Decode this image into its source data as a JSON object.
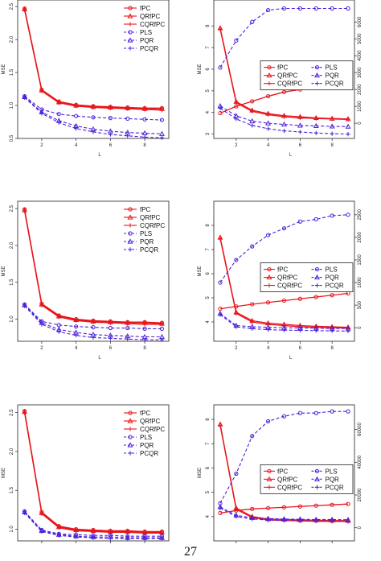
{
  "page_number": "27",
  "colors": {
    "red": "#e8151b",
    "blue": "#4b1fdc"
  },
  "legend_labels": {
    "fpc": "fPC",
    "qrfpc": "QRfPC",
    "cqrfpc": "CQRfPC",
    "pls": "PLS",
    "pqr": "PQR",
    "pcqr": "PCQR"
  },
  "chart_data": [
    {
      "type": "line",
      "xlabel": "L",
      "ylabel": "MSE",
      "ylim": [
        0.5,
        2.6
      ],
      "x": [
        1,
        2,
        3,
        4,
        5,
        6,
        7,
        8,
        9
      ],
      "xticks": [
        2,
        4,
        6,
        8
      ],
      "yticks": [
        0.5,
        1.0,
        1.5,
        2.0,
        2.5
      ],
      "ytick_labels": [
        "0.5",
        "1.0",
        "1.5",
        "2.0",
        "2.5"
      ],
      "legend": "top-right",
      "series": [
        {
          "name": "fPC",
          "color": "red",
          "dash": "solid",
          "marker": "circle",
          "values": [
            2.47,
            1.24,
            1.06,
            1.01,
            0.99,
            0.98,
            0.97,
            0.96,
            0.96
          ]
        },
        {
          "name": "QRfPC",
          "color": "red",
          "dash": "solid",
          "marker": "triangle",
          "values": [
            2.46,
            1.23,
            1.05,
            1.0,
            0.98,
            0.97,
            0.96,
            0.95,
            0.95
          ]
        },
        {
          "name": "CQRfPC",
          "color": "red",
          "dash": "solid",
          "marker": "plus",
          "values": [
            2.45,
            1.22,
            1.04,
            0.99,
            0.97,
            0.96,
            0.95,
            0.94,
            0.93
          ]
        },
        {
          "name": "PLS",
          "color": "blue",
          "dash": "dashed",
          "marker": "circle",
          "values": [
            1.14,
            0.94,
            0.87,
            0.84,
            0.82,
            0.81,
            0.8,
            0.79,
            0.78
          ]
        },
        {
          "name": "PQR",
          "color": "blue",
          "dash": "dashed",
          "marker": "triangle",
          "values": [
            1.13,
            0.9,
            0.77,
            0.69,
            0.64,
            0.61,
            0.59,
            0.58,
            0.57
          ]
        },
        {
          "name": "PCQR",
          "color": "blue",
          "dash": "dashed",
          "marker": "plus",
          "values": [
            1.12,
            0.88,
            0.74,
            0.65,
            0.6,
            0.56,
            0.54,
            0.52,
            0.51
          ]
        }
      ]
    },
    {
      "type": "line",
      "xlabel": "L",
      "ylabel": "MSE",
      "x": [
        1,
        2,
        3,
        4,
        5,
        6,
        7,
        8,
        9
      ],
      "xticks": [
        2,
        4,
        6,
        8
      ],
      "ylim": [
        2.8,
        9.2
      ],
      "yticks": [
        3,
        4,
        5,
        6,
        7,
        8
      ],
      "ytick_labels": [
        "3",
        "4",
        "5",
        "6",
        "7",
        "8"
      ],
      "y2lim": [
        -900,
        7300
      ],
      "y2ticks": [
        0,
        1000,
        2000,
        3000,
        4000,
        5000,
        6000
      ],
      "y2tick_labels": [
        "0",
        "1000",
        "2000",
        "3000",
        "4000",
        "5000",
        "6000"
      ],
      "legend": "center-right",
      "series": [
        {
          "name": "fPC",
          "color": "red",
          "dash": "solid",
          "marker": "circle",
          "axis": "right",
          "values": [
            600,
            1000,
            1300,
            1600,
            1850,
            2000,
            2150,
            2250,
            2350
          ]
        },
        {
          "name": "QRfPC",
          "color": "red",
          "dash": "solid",
          "marker": "triangle",
          "values": [
            7.9,
            4.5,
            4.1,
            3.95,
            3.85,
            3.8,
            3.75,
            3.72,
            3.7
          ]
        },
        {
          "name": "CQRfPC",
          "color": "red",
          "dash": "solid",
          "marker": "plus",
          "values": [
            7.85,
            4.45,
            4.05,
            3.9,
            3.8,
            3.75,
            3.72,
            3.7,
            3.68
          ]
        },
        {
          "name": "PLS",
          "color": "blue",
          "dash": "dashed",
          "marker": "circle",
          "axis": "right",
          "values": [
            3300,
            4900,
            6000,
            6700,
            6800,
            6800,
            6800,
            6800,
            6800
          ]
        },
        {
          "name": "PQR",
          "color": "blue",
          "dash": "dashed",
          "marker": "triangle",
          "values": [
            4.3,
            3.85,
            3.6,
            3.5,
            3.45,
            3.4,
            3.38,
            3.36,
            3.35
          ]
        },
        {
          "name": "PCQR",
          "color": "blue",
          "dash": "dashed",
          "marker": "plus",
          "values": [
            4.2,
            3.7,
            3.4,
            3.25,
            3.15,
            3.1,
            3.05,
            3.02,
            3.0
          ]
        }
      ]
    },
    {
      "type": "line",
      "xlabel": "L",
      "ylabel": "MSE",
      "ylim": [
        0.7,
        2.6
      ],
      "x": [
        1,
        2,
        3,
        4,
        5,
        6,
        7,
        8,
        9
      ],
      "xticks": [
        2,
        4,
        6,
        8
      ],
      "yticks": [
        1.0,
        1.5,
        2.0,
        2.5
      ],
      "ytick_labels": [
        "1.0",
        "1.5",
        "2.0",
        "2.5"
      ],
      "legend": "top-right",
      "series": [
        {
          "name": "fPC",
          "color": "red",
          "dash": "solid",
          "marker": "circle",
          "values": [
            2.49,
            1.21,
            1.05,
            1.0,
            0.98,
            0.97,
            0.96,
            0.96,
            0.95
          ]
        },
        {
          "name": "QRfPC",
          "color": "red",
          "dash": "solid",
          "marker": "triangle",
          "values": [
            2.48,
            1.2,
            1.04,
            0.99,
            0.97,
            0.96,
            0.95,
            0.95,
            0.94
          ]
        },
        {
          "name": "CQRfPC",
          "color": "red",
          "dash": "solid",
          "marker": "plus",
          "values": [
            2.47,
            1.19,
            1.03,
            0.98,
            0.96,
            0.95,
            0.94,
            0.93,
            0.93
          ]
        },
        {
          "name": "PLS",
          "color": "blue",
          "dash": "dashed",
          "marker": "circle",
          "values": [
            1.2,
            0.97,
            0.92,
            0.9,
            0.89,
            0.88,
            0.88,
            0.87,
            0.87
          ]
        },
        {
          "name": "PQR",
          "color": "blue",
          "dash": "dashed",
          "marker": "triangle",
          "values": [
            1.19,
            0.95,
            0.86,
            0.82,
            0.79,
            0.78,
            0.77,
            0.76,
            0.76
          ]
        },
        {
          "name": "PCQR",
          "color": "blue",
          "dash": "dashed",
          "marker": "plus",
          "values": [
            1.18,
            0.93,
            0.83,
            0.78,
            0.75,
            0.74,
            0.73,
            0.72,
            0.72
          ]
        }
      ]
    },
    {
      "type": "line",
      "xlabel": "L",
      "ylabel": "MSE",
      "x": [
        1,
        2,
        3,
        4,
        5,
        6,
        7,
        8,
        9
      ],
      "xticks": [
        2,
        4,
        6,
        8
      ],
      "ylim": [
        3.2,
        9.0
      ],
      "yticks": [
        4,
        5,
        6,
        7,
        8
      ],
      "ytick_labels": [
        "4",
        "5",
        "6",
        "7",
        "8"
      ],
      "y2lim": [
        -300,
        2800
      ],
      "y2ticks": [
        0,
        500,
        1000,
        1500,
        2000,
        2500
      ],
      "y2tick_labels": [
        "0",
        "500",
        "1000",
        "1500",
        "2000",
        "2500"
      ],
      "legend": "center-right",
      "series": [
        {
          "name": "fPC",
          "color": "red",
          "dash": "solid",
          "marker": "circle",
          "axis": "right",
          "values": [
            420,
            470,
            520,
            560,
            600,
            640,
            680,
            720,
            760
          ]
        },
        {
          "name": "QRfPC",
          "color": "red",
          "dash": "solid",
          "marker": "triangle",
          "values": [
            7.5,
            4.4,
            4.05,
            3.95,
            3.9,
            3.85,
            3.82,
            3.8,
            3.78
          ]
        },
        {
          "name": "CQRfPC",
          "color": "red",
          "dash": "solid",
          "marker": "plus",
          "values": [
            7.45,
            4.35,
            4.0,
            3.9,
            3.85,
            3.8,
            3.78,
            3.76,
            3.75
          ]
        },
        {
          "name": "PLS",
          "color": "blue",
          "dash": "dashed",
          "marker": "circle",
          "axis": "right",
          "values": [
            1000,
            1500,
            1800,
            2050,
            2200,
            2350,
            2400,
            2480,
            2500
          ]
        },
        {
          "name": "PQR",
          "color": "blue",
          "dash": "dashed",
          "marker": "triangle",
          "values": [
            4.35,
            3.85,
            3.8,
            3.78,
            3.76,
            3.75,
            3.74,
            3.73,
            3.73
          ]
        },
        {
          "name": "PCQR",
          "color": "blue",
          "dash": "dashed",
          "marker": "plus",
          "values": [
            4.3,
            3.8,
            3.72,
            3.68,
            3.66,
            3.65,
            3.64,
            3.63,
            3.62
          ]
        }
      ]
    },
    {
      "type": "line",
      "xlabel": "L",
      "ylabel": "MSE",
      "ylim": [
        0.85,
        2.6
      ],
      "x": [
        1,
        2,
        3,
        4,
        5,
        6,
        7,
        8,
        9
      ],
      "xticks": [
        2,
        4,
        6,
        8
      ],
      "yticks": [
        1.0,
        1.5,
        2.0,
        2.5
      ],
      "ytick_labels": [
        "1.0",
        "1.5",
        "2.0",
        "2.5"
      ],
      "legend": "top-right",
      "series": [
        {
          "name": "fPC",
          "color": "red",
          "dash": "solid",
          "marker": "circle",
          "values": [
            2.52,
            1.22,
            1.04,
            1.0,
            0.99,
            0.98,
            0.98,
            0.97,
            0.97
          ]
        },
        {
          "name": "QRfPC",
          "color": "red",
          "dash": "solid",
          "marker": "triangle",
          "values": [
            2.51,
            1.21,
            1.03,
            0.99,
            0.98,
            0.97,
            0.97,
            0.96,
            0.96
          ]
        },
        {
          "name": "CQRfPC",
          "color": "red",
          "dash": "solid",
          "marker": "plus",
          "values": [
            2.5,
            1.2,
            1.02,
            0.98,
            0.97,
            0.96,
            0.96,
            0.95,
            0.95
          ]
        },
        {
          "name": "PLS",
          "color": "blue",
          "dash": "dashed",
          "marker": "circle",
          "values": [
            1.23,
            0.99,
            0.94,
            0.93,
            0.92,
            0.92,
            0.91,
            0.91,
            0.91
          ]
        },
        {
          "name": "PQR",
          "color": "blue",
          "dash": "dashed",
          "marker": "triangle",
          "values": [
            1.22,
            0.98,
            0.93,
            0.91,
            0.9,
            0.9,
            0.89,
            0.89,
            0.89
          ]
        },
        {
          "name": "PCQR",
          "color": "blue",
          "dash": "dashed",
          "marker": "plus",
          "values": [
            1.21,
            0.97,
            0.92,
            0.9,
            0.89,
            0.88,
            0.88,
            0.88,
            0.88
          ]
        }
      ]
    },
    {
      "type": "line",
      "xlabel": "L",
      "ylabel": "MSE",
      "x": [
        1,
        2,
        3,
        4,
        5,
        6,
        7,
        8,
        9
      ],
      "xticks": [
        2,
        4,
        6,
        8
      ],
      "ylim": [
        3.0,
        8.6
      ],
      "yticks": [
        4,
        5,
        6,
        7,
        8
      ],
      "ytick_labels": [
        "4",
        "5",
        "6",
        "7",
        "8"
      ],
      "y2lim": [
        -8000,
        75000
      ],
      "y2ticks": [
        0,
        20000,
        40000,
        60000
      ],
      "y2tick_labels": [
        "0",
        "20000",
        "40000",
        "60000"
      ],
      "legend": "center-right",
      "series": [
        {
          "name": "fPC",
          "color": "red",
          "dash": "solid",
          "marker": "circle",
          "axis": "right",
          "values": [
            9000,
            10500,
            11500,
            12000,
            12500,
            13000,
            13500,
            14000,
            14500
          ]
        },
        {
          "name": "QRfPC",
          "color": "red",
          "dash": "solid",
          "marker": "triangle",
          "values": [
            7.8,
            4.35,
            4.0,
            3.9,
            3.88,
            3.86,
            3.85,
            3.84,
            3.83
          ]
        },
        {
          "name": "CQRfPC",
          "color": "red",
          "dash": "solid",
          "marker": "plus",
          "values": [
            7.75,
            4.3,
            3.96,
            3.86,
            3.84,
            3.82,
            3.81,
            3.8,
            3.8
          ]
        },
        {
          "name": "PLS",
          "color": "blue",
          "dash": "dashed",
          "marker": "circle",
          "axis": "right",
          "values": [
            15000,
            33000,
            56000,
            65000,
            68000,
            70000,
            70000,
            71000,
            71000
          ]
        },
        {
          "name": "PQR",
          "color": "blue",
          "dash": "dashed",
          "marker": "triangle",
          "values": [
            4.4,
            4.05,
            3.95,
            3.92,
            3.9,
            3.89,
            3.88,
            3.88,
            3.87
          ]
        },
        {
          "name": "PCQR",
          "color": "blue",
          "dash": "dashed",
          "marker": "plus",
          "values": [
            4.35,
            4.0,
            3.9,
            3.86,
            3.84,
            3.83,
            3.82,
            3.82,
            3.81
          ]
        }
      ]
    }
  ]
}
